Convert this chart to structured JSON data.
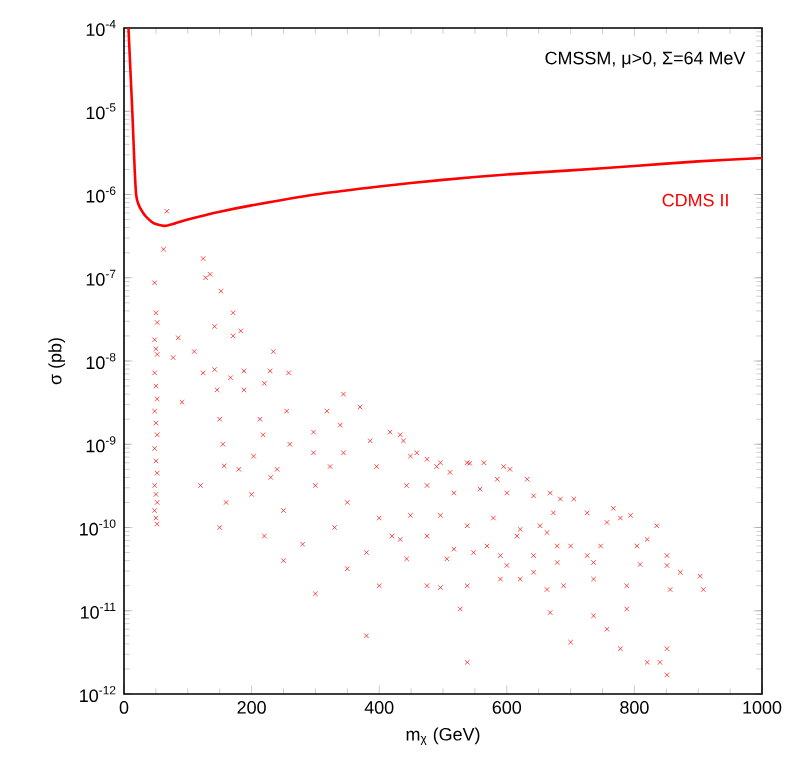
{
  "chart_data": {
    "type": "scatter",
    "xlabel": "m$_{χ}$ (GeV)",
    "ylabel": "σ (pb)",
    "log": "y",
    "legend": false,
    "grid": false,
    "annotations": [
      "CMSSM, μ>0, Σ=64 MeV"
    ],
    "xlim": [
      0,
      1000
    ],
    "xticks": [
      0,
      200,
      400,
      600,
      800,
      1000
    ],
    "ylim": [
      1e-12,
      0.0001
    ],
    "yticks": [
      {
        "value": 1e-12,
        "label": "10$^{-12}$"
      },
      {
        "value": 1e-11,
        "label": "10$^{-11}$"
      },
      {
        "value": 1e-10,
        "label": "10$^{-10}$"
      },
      {
        "value": 1e-09,
        "label": "10$^{-9}$"
      },
      {
        "value": 1e-08,
        "label": "10$^{-8}$"
      },
      {
        "value": 1e-07,
        "label": "10$^{-7}$"
      },
      {
        "value": 1e-06,
        "label": "10$^{-6}$"
      },
      {
        "value": 1e-05,
        "label": "10$^{-5}$"
      },
      {
        "value": 0.0001,
        "label": "10$^{-4}$"
      }
    ],
    "series": [
      {
        "name": "CDMS II",
        "type": "line",
        "color": "#ff0000",
        "marker": "none",
        "line_style": "solid",
        "x": [
          7,
          13,
          19,
          30,
          45,
          63,
          80,
          100,
          150,
          200,
          300,
          400,
          500,
          600,
          700,
          800,
          900,
          1000
        ],
        "values": [
          0.0001,
          1e-05,
          1e-06,
          6e-07,
          4.6e-07,
          4.2e-07,
          4.5e-07,
          5e-07,
          6.2e-07,
          7.4e-07,
          1e-06,
          1.25e-06,
          1.5e-06,
          1.74e-06,
          1.95e-06,
          2.2e-06,
          2.5e-06,
          2.75e-06
        ]
      },
      {
        "color": "#ff0000",
        "marker": "cross",
        "x": [
          67,
          62,
          124,
          135,
          128,
          152,
          171,
          142,
          183,
          171,
          85,
          77,
          110,
          124,
          142,
          234,
          229,
          258,
          188,
          167,
          220,
          188,
          91,
          146,
          344,
          370,
          318,
          255,
          213,
          150,
          297,
          339,
          417,
          386,
          438,
          155,
          218,
          260,
          297,
          344,
          459,
          157,
          203,
          240,
          323,
          396,
          490,
          542,
          595,
          48,
          50,
          52,
          48,
          50,
          52,
          48,
          50,
          52,
          48,
          50,
          52,
          48,
          50,
          52,
          48,
          50,
          52,
          48,
          50,
          52,
          433,
          449,
          475,
          496,
          511,
          538,
          564,
          605,
          632,
          585,
          443,
          475,
          517,
          558,
          600,
          642,
          668,
          684,
          705,
          673,
          726,
          767,
          794,
          757,
          778,
          449,
          496,
          538,
          579,
          621,
          652,
          433,
          475,
          517,
          569,
          616,
          663,
          443,
          506,
          548,
          590,
          600,
          642,
          679,
          700,
          726,
          747,
          804,
          835,
          820,
          851,
          851,
          872,
          903,
          908,
          856,
          809,
          736,
          679,
          621,
          590,
          642,
          663,
          689,
          736,
          788,
          475,
          538,
          496,
          527,
          668,
          736,
          788,
          757,
          778,
          700,
          538,
          820,
          840,
          851,
          851,
          120,
          160,
          200,
          250,
          300,
          350,
          400,
          150,
          220,
          280,
          330,
          380,
          420,
          250,
          350,
          300,
          400,
          380,
          230,
          180
        ],
        "values": [
          6.3e-07,
          2.2e-07,
          1.7e-07,
          1.1e-07,
          1e-07,
          6.9e-08,
          3.8e-08,
          2.6e-08,
          2.3e-08,
          2e-08,
          1.9e-08,
          1.1e-08,
          1.3e-08,
          7.2e-09,
          7.9e-09,
          1.3e-08,
          7.6e-09,
          7.2e-09,
          7.6e-09,
          6.3e-09,
          5.4e-09,
          4.5e-09,
          3.2e-09,
          4.5e-09,
          4e-09,
          2.8e-09,
          2.5e-09,
          2.5e-09,
          2e-09,
          2e-09,
          1.4e-09,
          1.7e-09,
          1.4e-09,
          1.1e-09,
          1.1e-09,
          1e-09,
          1.3e-09,
          1e-09,
          7.9e-10,
          7.9e-10,
          7.9e-10,
          5.5e-10,
          7.2e-10,
          5e-10,
          5.4e-10,
          5.4e-10,
          5.4e-10,
          5.9e-10,
          5.4e-10,
          8.7e-08,
          3.8e-08,
          2.9e-08,
          1.8e-08,
          1.4e-08,
          1.2e-08,
          7.2e-09,
          5e-09,
          3.5e-09,
          2.5e-09,
          1.8e-09,
          1.3e-09,
          8.9e-10,
          6.3e-10,
          4.5e-10,
          3.2e-10,
          2.5e-10,
          2e-10,
          1.6e-10,
          1.3e-10,
          1.1e-10,
          1.3e-09,
          7.2e-10,
          6.6e-10,
          6e-10,
          4.6e-10,
          6e-10,
          6e-10,
          5e-10,
          3.8e-10,
          3.8e-10,
          3.2e-10,
          3.2e-10,
          2.6e-10,
          2.9e-10,
          2.6e-10,
          2.4e-10,
          2.6e-10,
          2.2e-10,
          2.2e-10,
          1.5e-10,
          1.5e-10,
          1.7e-10,
          1.4e-10,
          1.15e-10,
          1.3e-10,
          1.4e-10,
          1.4e-10,
          1.05e-10,
          1.3e-10,
          9.5e-11,
          1.05e-10,
          7.2e-11,
          7.9e-11,
          5.5e-11,
          6e-11,
          7.9e-11,
          8.7e-11,
          4.2e-11,
          4.2e-11,
          5e-11,
          4.6e-11,
          3.5e-11,
          4.6e-11,
          6e-11,
          6e-11,
          4.6e-11,
          6e-11,
          6e-11,
          1.05e-10,
          7.2e-11,
          4.6e-11,
          3.5e-11,
          2.9e-11,
          2.6e-11,
          1.8e-11,
          1.8e-11,
          3.6e-11,
          3.8e-11,
          3.8e-11,
          2.4e-11,
          2.4e-11,
          2.9e-11,
          1.8e-11,
          2e-11,
          2.4e-11,
          2e-11,
          2e-11,
          2e-11,
          1.9e-11,
          1.05e-11,
          9.5e-12,
          8.7e-12,
          1.05e-11,
          6e-12,
          3.5e-12,
          4.2e-12,
          2.4e-12,
          2.4e-12,
          2.4e-12,
          3.5e-12,
          1.7e-12,
          3.2e-10,
          2e-10,
          2.5e-10,
          1.6e-10,
          3.2e-10,
          2e-10,
          1.3e-10,
          1e-10,
          7.9e-11,
          6.3e-11,
          1e-10,
          5e-11,
          7.9e-11,
          4e-11,
          3.2e-11,
          1.6e-11,
          2e-11,
          5e-12,
          4e-10,
          5e-10
        ]
      }
    ]
  }
}
